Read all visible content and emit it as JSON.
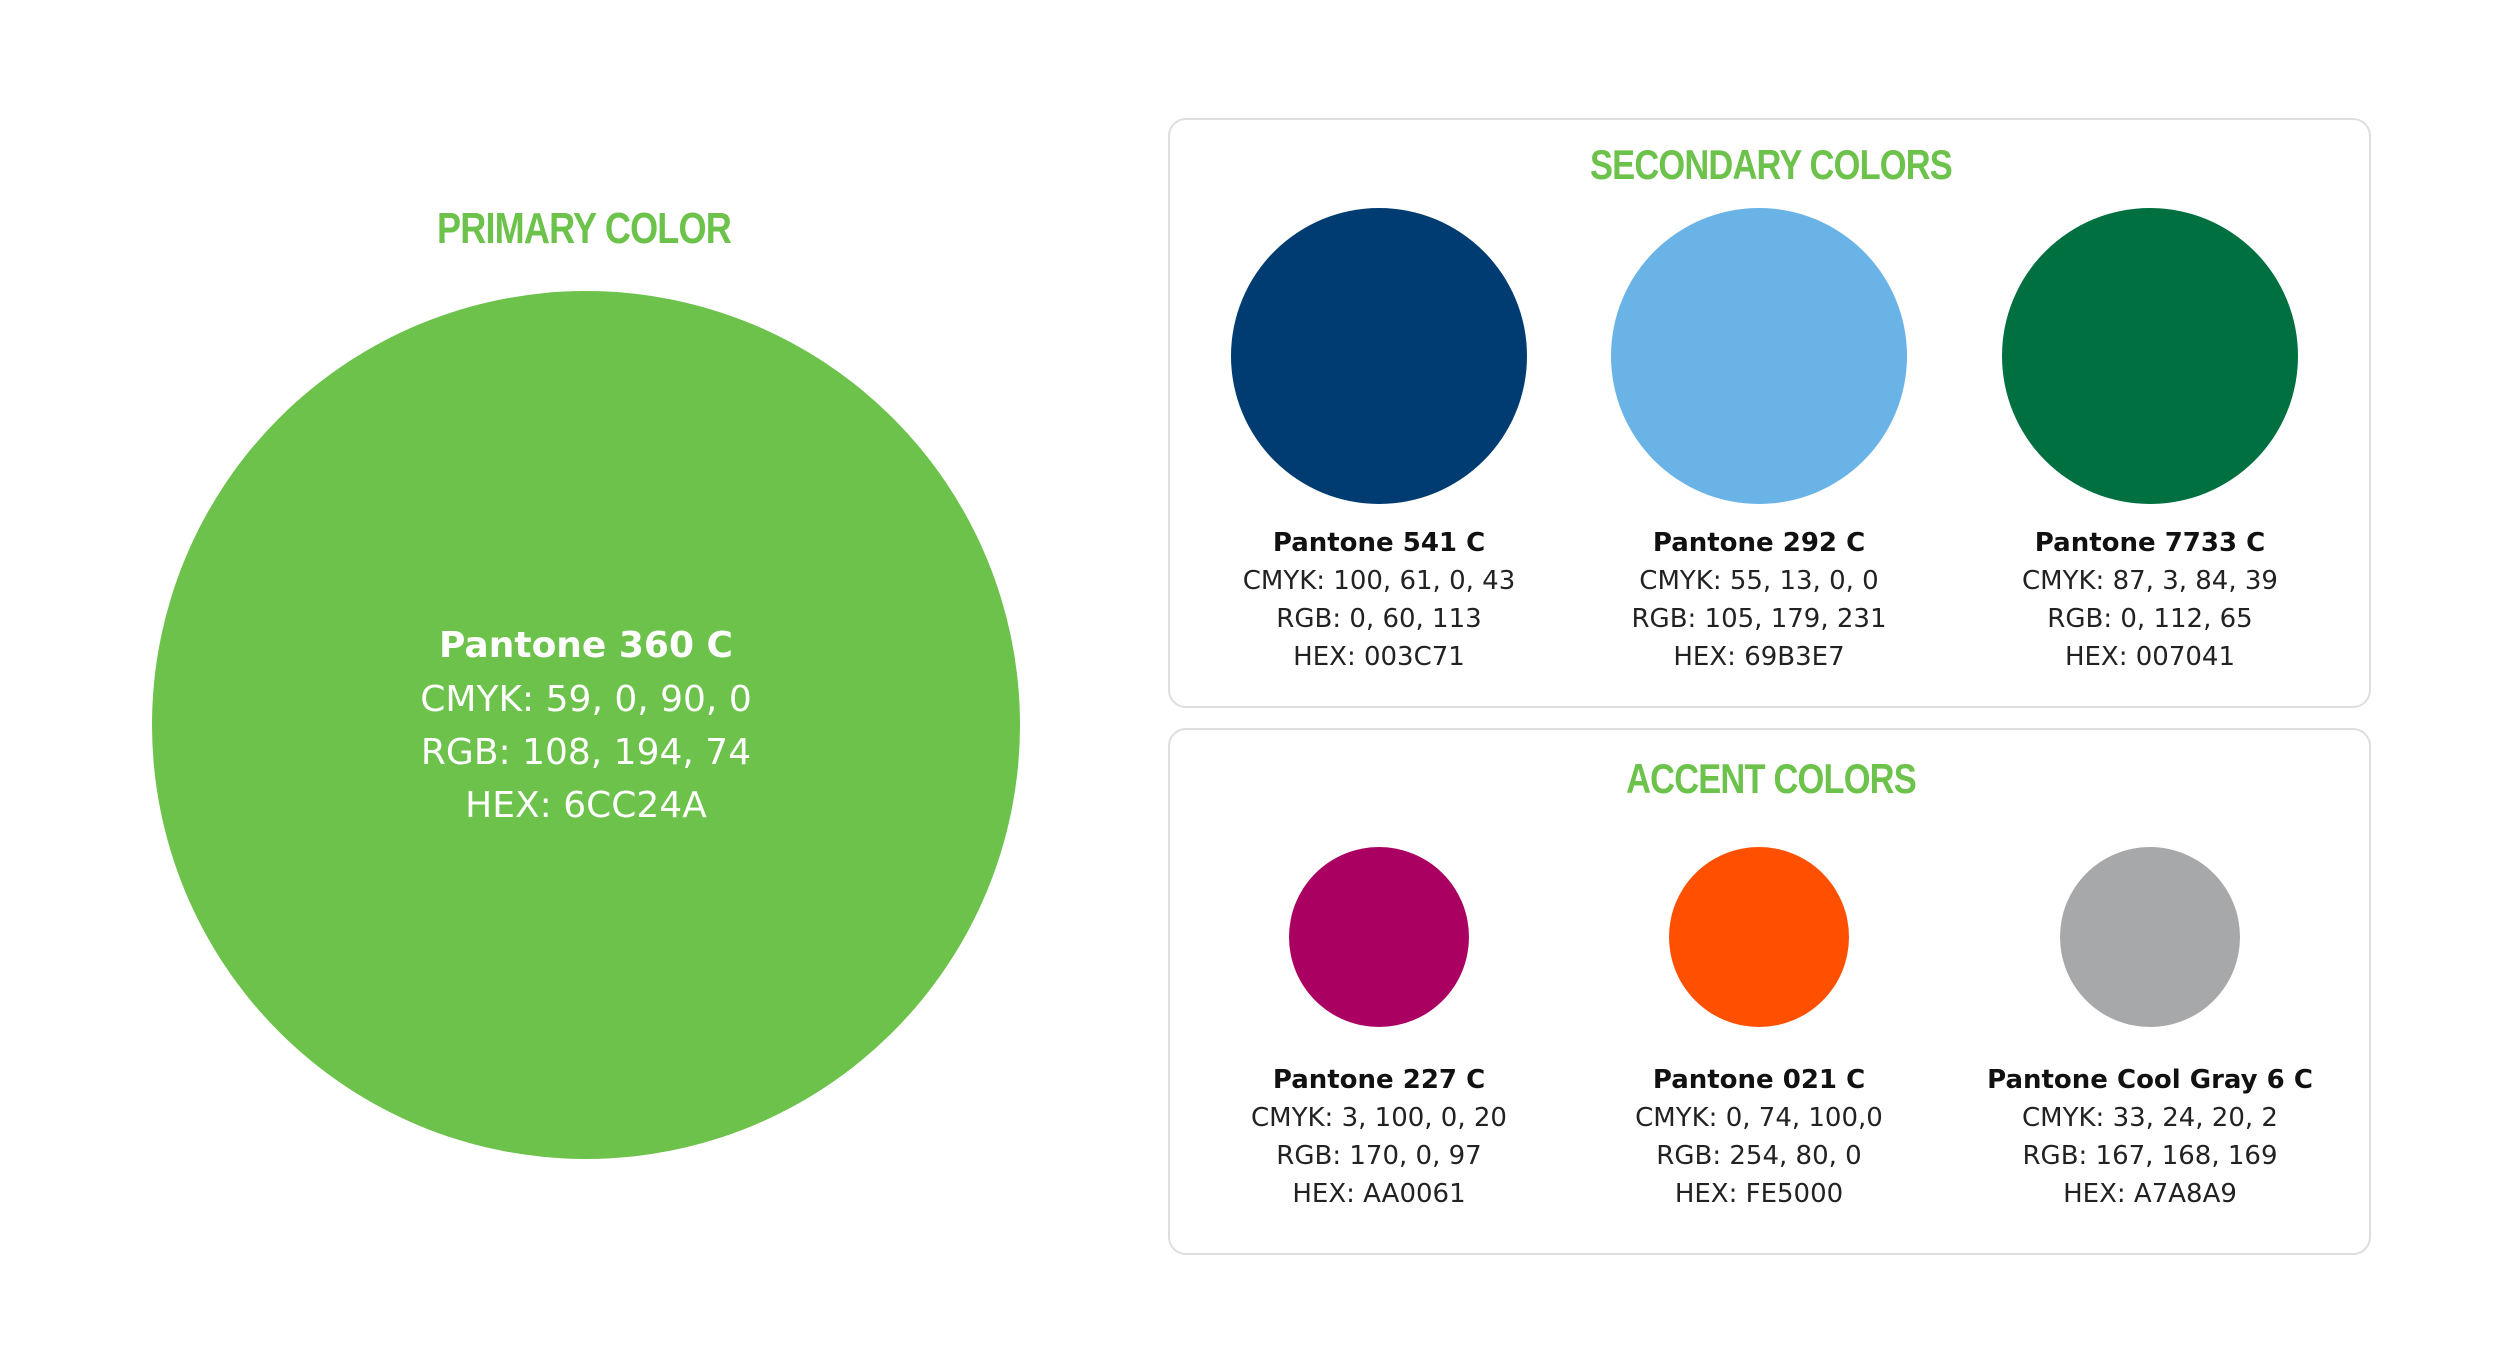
{
  "primary": {
    "heading": "PRIMARY COLOR",
    "name": "Pantone 360 C",
    "cmyk": "CMYK: 59, 0, 90, 0",
    "rgb": "RGB: 108, 194, 74",
    "hex": "HEX: 6CC24A",
    "color": "#6CC24A"
  },
  "secondary": {
    "heading": "SECONDARY COLORS",
    "swatches": [
      {
        "name": "Pantone 541 C",
        "cmyk": "CMYK: 100, 61, 0, 43",
        "rgb": "RGB: 0, 60, 113",
        "hex": "HEX: 003C71",
        "color": "#003C71"
      },
      {
        "name": "Pantone 292 C",
        "cmyk": "CMYK: 55, 13, 0, 0",
        "rgb": "RGB: 105, 179, 231",
        "hex": "HEX: 69B3E7",
        "color": "#69B3E7"
      },
      {
        "name": "Pantone 7733 C",
        "cmyk": "CMYK: 87, 3, 84, 39",
        "rgb": "RGB: 0, 112, 65",
        "hex": "HEX: 007041",
        "color": "#007041"
      }
    ]
  },
  "accent": {
    "heading": "ACCENT COLORS",
    "swatches": [
      {
        "name": "Pantone 227 C",
        "cmyk": "CMYK: 3, 100, 0, 20",
        "rgb": "RGB: 170, 0, 97",
        "hex": "HEX: AA0061",
        "color": "#AA0061"
      },
      {
        "name": "Pantone 021 C",
        "cmyk": "CMYK: 0, 74, 100,0",
        "rgb": "RGB: 254, 80, 0",
        "hex": "HEX: FE5000",
        "color": "#FE5000"
      },
      {
        "name": "Pantone Cool Gray 6 C",
        "cmyk": "CMYK: 33, 24, 20, 2",
        "rgb": "RGB: 167, 168, 169",
        "hex": "HEX: A7A8A9",
        "color": "#A7A8A9"
      }
    ]
  }
}
